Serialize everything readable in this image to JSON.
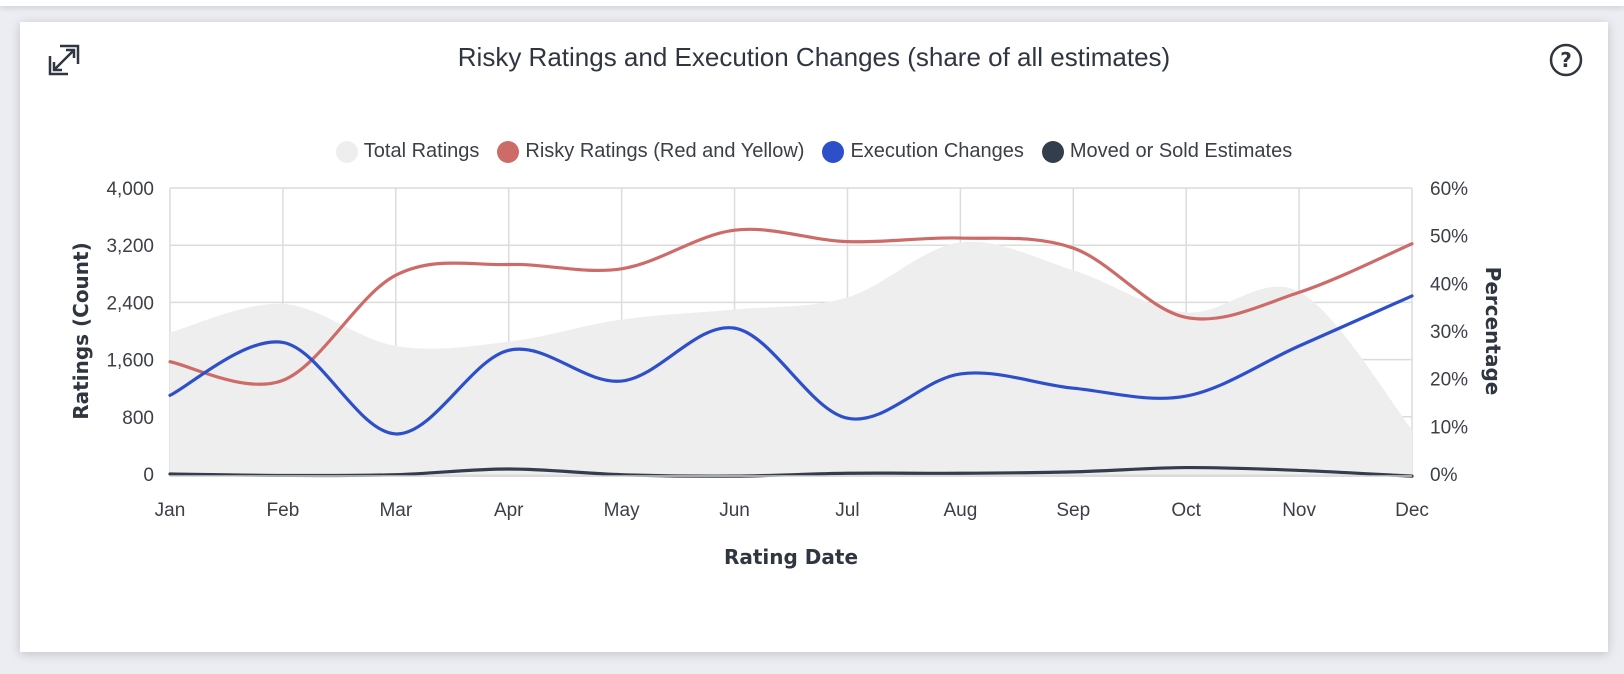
{
  "chart_data": {
    "type": "line",
    "title": "Risky Ratings and Execution Changes (share of all estimates)",
    "categories": [
      "Jan",
      "Feb",
      "Mar",
      "Apr",
      "May",
      "Jun",
      "Jul",
      "Aug",
      "Sep",
      "Oct",
      "Nov",
      "Dec"
    ],
    "xlabel": "Rating Date",
    "ylabel": "Ratings (Count)",
    "y2label": "Percentage",
    "ylim": [
      0,
      4000
    ],
    "y2lim": [
      0,
      60
    ],
    "yticks": [
      "0",
      "800",
      "1,600",
      "2,400",
      "3,200",
      "4,000"
    ],
    "y2ticks": [
      "0%",
      "10%",
      "20%",
      "30%",
      "40%",
      "50%",
      "60%"
    ],
    "grid": true,
    "legend_position": "top-center",
    "series": [
      {
        "name": "Total Ratings",
        "type": "area",
        "axis": "left",
        "color": "#eeeeee",
        "values": [
          1980,
          2380,
          1790,
          1850,
          2160,
          2300,
          2470,
          3240,
          2850,
          2260,
          2550,
          620
        ]
      },
      {
        "name": "Risky Ratings (Red and Yellow)",
        "type": "line",
        "axis": "left",
        "color": "#cd6b68",
        "values": [
          1570,
          1310,
          2780,
          2930,
          2870,
          3410,
          3250,
          3300,
          3160,
          2190,
          2540,
          3220
        ]
      },
      {
        "name": "Execution Changes",
        "type": "line",
        "axis": "left",
        "color": "#2d4fc9",
        "values": [
          1100,
          1840,
          560,
          1730,
          1300,
          2040,
          780,
          1400,
          1200,
          1090,
          1790,
          2490
        ]
      },
      {
        "name": "Moved or Sold Estimates",
        "type": "line",
        "axis": "left",
        "color": "#333d4b",
        "values": [
          0,
          -20,
          -10,
          70,
          -10,
          -30,
          10,
          10,
          30,
          90,
          50,
          -30
        ]
      }
    ]
  },
  "controls": {
    "expand_icon": "expand-icon",
    "help_icon": "help-icon"
  }
}
